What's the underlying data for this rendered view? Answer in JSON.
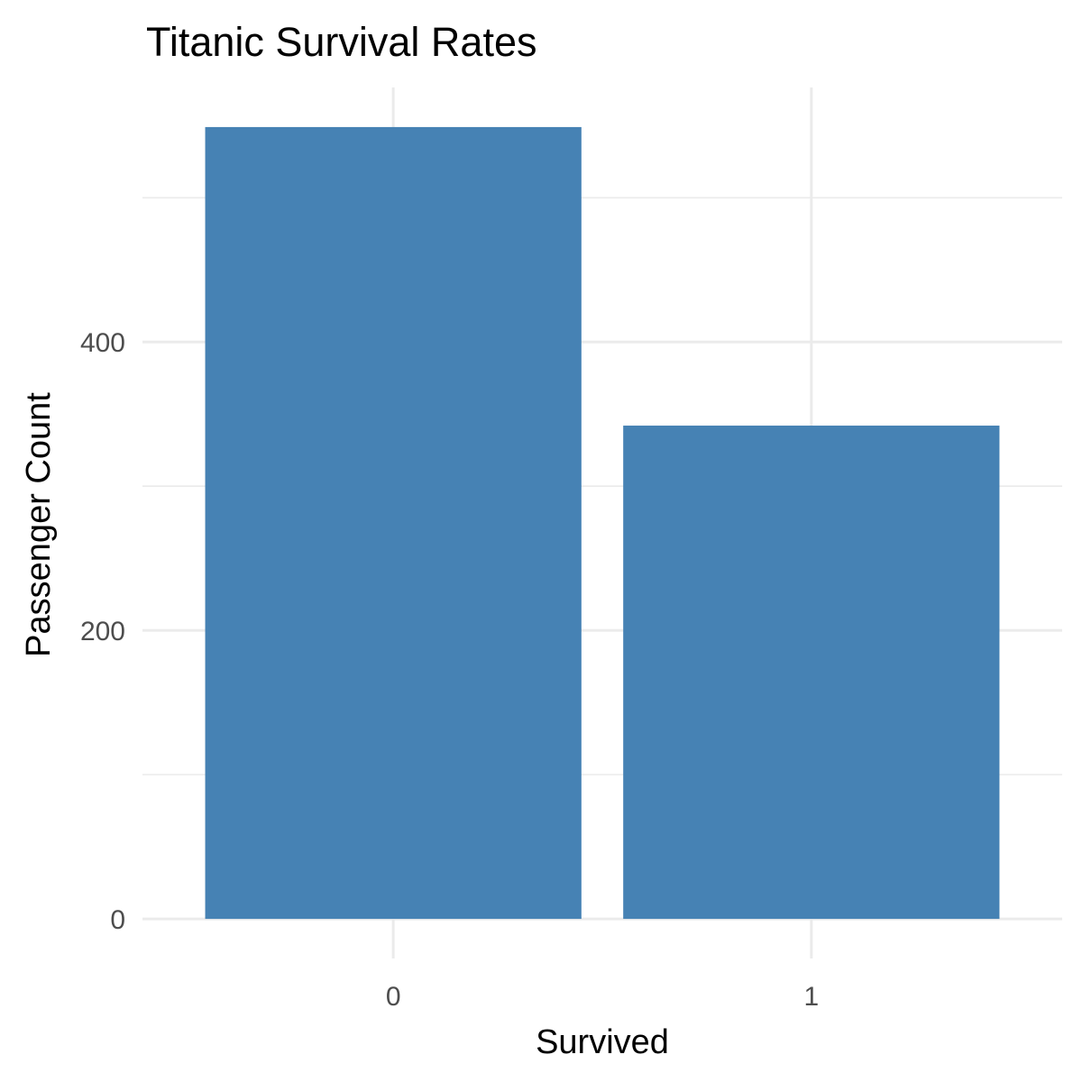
{
  "chart_data": {
    "type": "bar",
    "title": "Titanic Survival Rates",
    "xlabel": "Survived",
    "ylabel": "Passenger Count",
    "categories": [
      "0",
      "1"
    ],
    "values": [
      549,
      342
    ],
    "ylim": [
      -27.45,
      576.45
    ],
    "yticks": [
      0,
      200,
      400
    ],
    "yticks_minor": [
      100,
      300,
      500
    ],
    "grid": true,
    "legend": "none",
    "bar_color": "#4682B4",
    "grid_color": "#EBEBEB"
  }
}
